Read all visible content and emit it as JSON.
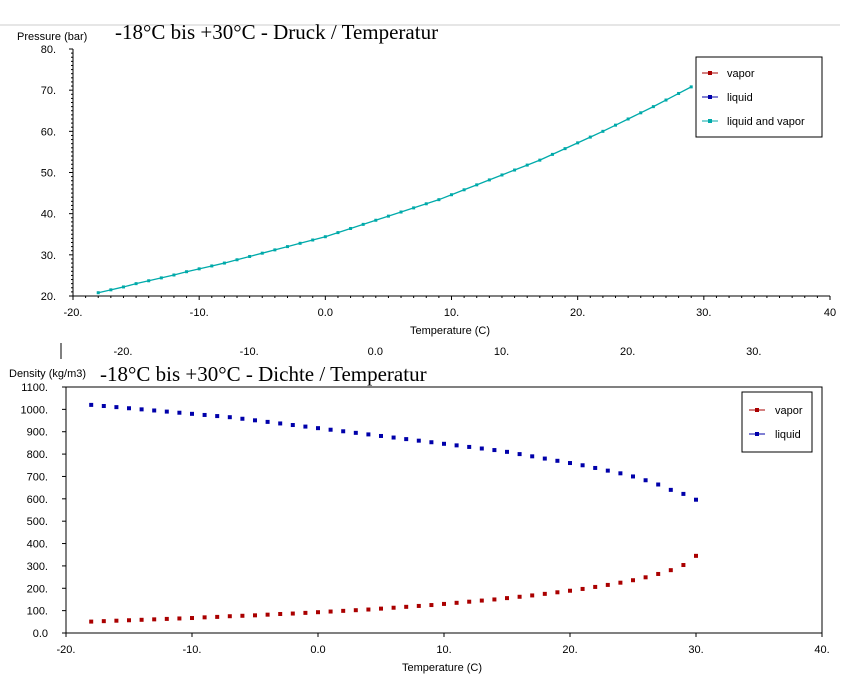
{
  "colors": {
    "vapor": "#aa0000",
    "liquid": "#0000aa",
    "mix": "#00aaaa",
    "frame": "#000000"
  },
  "chart_data": [
    {
      "type": "line",
      "title": "-18°C bis +30°C - Druck / Temperatur",
      "xlabel": "Temperature (C)",
      "ylabel": "Pressure (bar)",
      "xlim": [
        -20,
        40
      ],
      "ylim": [
        20,
        80
      ],
      "grid": false,
      "legend_position": "top-right",
      "x_ticks": [
        "-20.",
        "-10.",
        "0.0",
        "10.",
        "20.",
        "30.",
        "40"
      ],
      "y_ticks": [
        "20.",
        "30.",
        "40.",
        "50.",
        "60.",
        "70.",
        "80."
      ],
      "secondary_x_ticks": [
        "-20.",
        "-10.",
        "0.0",
        "10.",
        "20.",
        "30."
      ],
      "legend": [
        "vapor",
        "liquid",
        "liquid and vapor"
      ],
      "series": [
        {
          "name": "liquid and vapor",
          "x": [
            -18,
            -17,
            -16,
            -15,
            -14,
            -13,
            -12,
            -11,
            -10,
            -9,
            -8,
            -7,
            -6,
            -5,
            -4,
            -3,
            -2,
            -1,
            0,
            1,
            2,
            3,
            4,
            5,
            6,
            7,
            8,
            9,
            10,
            11,
            12,
            13,
            14,
            15,
            16,
            17,
            18,
            19,
            20,
            21,
            22,
            23,
            24,
            25,
            26,
            27,
            28,
            29
          ],
          "values": [
            20.8,
            21.5,
            22.2,
            23.0,
            23.7,
            24.4,
            25.1,
            25.9,
            26.6,
            27.3,
            28.0,
            28.8,
            29.6,
            30.4,
            31.2,
            32.0,
            32.8,
            33.6,
            34.4,
            35.4,
            36.4,
            37.4,
            38.4,
            39.4,
            40.4,
            41.4,
            42.4,
            43.4,
            44.6,
            45.8,
            47.0,
            48.2,
            49.4,
            50.6,
            51.8,
            53.0,
            54.4,
            55.8,
            57.2,
            58.6,
            60.0,
            61.5,
            63.0,
            64.5,
            66.0,
            67.6,
            69.2,
            70.8
          ]
        }
      ]
    },
    {
      "type": "scatter",
      "title": "-18°C bis +30°C - Dichte / Temperatur",
      "xlabel": "Temperature (C)",
      "ylabel": "Density (kg/m3)",
      "xlim": [
        -20,
        40
      ],
      "ylim": [
        0,
        1100
      ],
      "grid": false,
      "legend_position": "top-right",
      "x_ticks": [
        "-20.",
        "-10.",
        "0.0",
        "10.",
        "20.",
        "30.",
        "40."
      ],
      "y_ticks": [
        "0.0",
        "100.",
        "200.",
        "300.",
        "400.",
        "500.",
        "600.",
        "700.",
        "800.",
        "900.",
        "1000.",
        "1100."
      ],
      "legend": [
        "vapor",
        "liquid"
      ],
      "series": [
        {
          "name": "vapor",
          "x": [
            -18,
            -17,
            -16,
            -15,
            -14,
            -13,
            -12,
            -11,
            -10,
            -9,
            -8,
            -7,
            -6,
            -5,
            -4,
            -3,
            -2,
            -1,
            0,
            1,
            2,
            3,
            4,
            5,
            6,
            7,
            8,
            9,
            10,
            11,
            12,
            13,
            14,
            15,
            16,
            17,
            18,
            19,
            20,
            21,
            22,
            23,
            24,
            25,
            26,
            27,
            28,
            29,
            30
          ],
          "values": [
            51,
            53,
            55,
            57,
            59,
            61,
            63,
            65,
            67,
            70,
            72,
            75,
            77,
            79,
            82,
            85,
            87,
            90,
            93,
            96,
            99,
            102,
            105,
            109,
            113,
            117,
            121,
            125,
            130,
            135,
            140,
            145,
            150,
            156,
            162,
            168,
            175,
            182,
            189,
            197,
            206,
            215,
            225,
            236,
            249,
            264,
            281,
            304,
            345
          ]
        },
        {
          "name": "liquid",
          "x": [
            -18,
            -17,
            -16,
            -15,
            -14,
            -13,
            -12,
            -11,
            -10,
            -9,
            -8,
            -7,
            -6,
            -5,
            -4,
            -3,
            -2,
            -1,
            0,
            1,
            2,
            3,
            4,
            5,
            6,
            7,
            8,
            9,
            10,
            11,
            12,
            13,
            14,
            15,
            16,
            17,
            18,
            19,
            20,
            21,
            22,
            23,
            24,
            25,
            26,
            27,
            28,
            29,
            30
          ],
          "values": [
            1020,
            1015,
            1010,
            1005,
            1000,
            995,
            990,
            985,
            980,
            975,
            970,
            965,
            958,
            951,
            944,
            937,
            930,
            923,
            916,
            909,
            902,
            895,
            888,
            881,
            874,
            867,
            860,
            853,
            846,
            839,
            832,
            825,
            818,
            810,
            800,
            790,
            780,
            770,
            760,
            750,
            738,
            726,
            714,
            700,
            683,
            664,
            640,
            622,
            596
          ]
        }
      ]
    }
  ]
}
